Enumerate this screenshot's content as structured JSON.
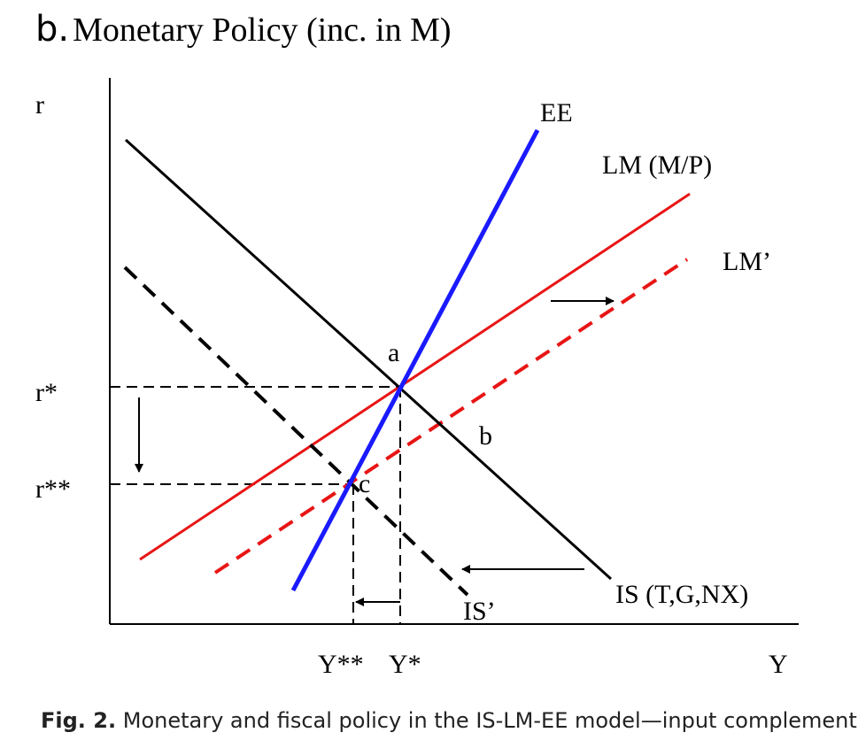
{
  "title": {
    "letter": "b.",
    "text": "Monetary Policy (inc. in M)"
  },
  "caption": {
    "label": "Fig. 2.",
    "text": "Monetary and fiscal policy in the IS-LM-EE model—input complements."
  },
  "axes": {
    "y_label": "r",
    "x_label": "Y"
  },
  "levels": {
    "r_star": "r*",
    "r_star_star": "r**",
    "y_star": "Y*",
    "y_star_star": "Y**"
  },
  "curves": {
    "ee": "EE",
    "lm": "LM (M/P)",
    "lm_prime": "LM’",
    "is": "IS (T,G,NX)",
    "is_prime": "IS’"
  },
  "points": {
    "a": "a",
    "b": "b",
    "c": "c"
  },
  "colors": {
    "ee": "#1a1aff",
    "lm": "#e81515",
    "axis": "#000000",
    "is": "#000000"
  }
}
